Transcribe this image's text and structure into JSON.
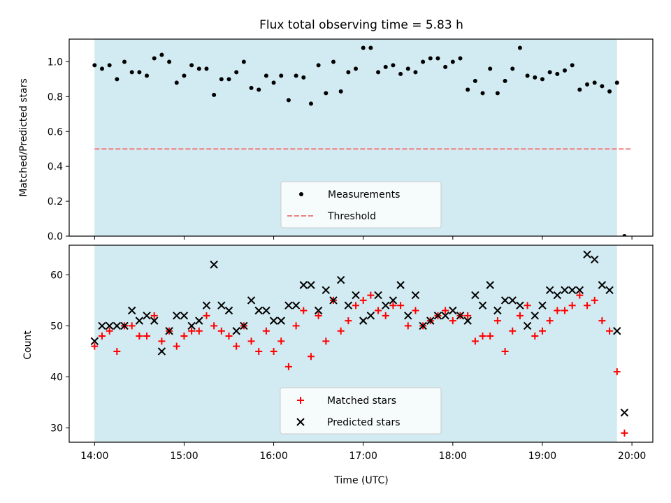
{
  "chart_data": [
    {
      "type": "scatter",
      "title": "Flux total observing time = 5.83 h",
      "xlabel": "",
      "ylabel": "Matched/Predicted stars",
      "xlim": [
        "13:43",
        "20:14"
      ],
      "ylim": [
        0,
        1.13
      ],
      "yticks": [
        "0.0",
        "0.2",
        "0.4",
        "0.6",
        "0.8",
        "1.0"
      ],
      "grid": false,
      "legend_placement": "lower-center",
      "observing_window": [
        "14:00",
        "19:50"
      ],
      "threshold": {
        "name": "Threshold",
        "value": 0.5,
        "from": "14:00",
        "to": "19:59",
        "color": "#f08080",
        "style": "dashed"
      },
      "series": [
        {
          "name": "Measurements",
          "marker": "dot",
          "color": "#000000",
          "x": [
            "14:00",
            "14:05",
            "14:10",
            "14:15",
            "14:20",
            "14:25",
            "14:30",
            "14:35",
            "14:40",
            "14:45",
            "14:50",
            "14:55",
            "15:00",
            "15:05",
            "15:10",
            "15:15",
            "15:20",
            "15:25",
            "15:30",
            "15:35",
            "15:40",
            "15:45",
            "15:50",
            "15:55",
            "16:00",
            "16:05",
            "16:10",
            "16:15",
            "16:20",
            "16:25",
            "16:30",
            "16:35",
            "16:40",
            "16:45",
            "16:50",
            "16:55",
            "17:00",
            "17:05",
            "17:10",
            "17:15",
            "17:20",
            "17:25",
            "17:30",
            "17:35",
            "17:40",
            "17:45",
            "17:50",
            "17:55",
            "18:00",
            "18:05",
            "18:10",
            "18:15",
            "18:20",
            "18:25",
            "18:30",
            "18:35",
            "18:40",
            "18:45",
            "18:50",
            "18:55",
            "19:00",
            "19:05",
            "19:10",
            "19:15",
            "19:20",
            "19:25",
            "19:30",
            "19:35",
            "19:40",
            "19:45",
            "19:50",
            "19:55"
          ],
          "y": [
            0.98,
            0.96,
            0.98,
            0.9,
            1.0,
            0.94,
            0.94,
            0.92,
            1.02,
            1.04,
            1.0,
            0.88,
            0.92,
            0.98,
            0.96,
            0.96,
            0.81,
            0.9,
            0.9,
            0.94,
            1.0,
            0.85,
            0.84,
            0.92,
            0.88,
            0.92,
            0.78,
            0.92,
            0.91,
            0.76,
            0.98,
            0.82,
            1.0,
            0.83,
            0.94,
            0.96,
            1.08,
            1.08,
            0.94,
            0.97,
            0.98,
            0.93,
            0.96,
            0.94,
            1.0,
            1.02,
            1.02,
            0.97,
            1.0,
            1.02,
            0.84,
            0.89,
            0.82,
            0.96,
            0.82,
            0.89,
            0.96,
            1.08,
            0.92,
            0.91,
            0.9,
            0.94,
            0.93,
            0.95,
            0.98,
            0.84,
            0.87,
            0.88,
            0.86,
            0.83,
            0.88,
            0.0
          ]
        }
      ]
    },
    {
      "type": "scatter",
      "title": "",
      "xlabel": "Time (UTC)",
      "ylabel": "Count",
      "xlim": [
        "13:43",
        "20:14"
      ],
      "xticks": [
        "14:00",
        "15:00",
        "16:00",
        "17:00",
        "18:00",
        "19:00",
        "20:00"
      ],
      "ylim": [
        27.2,
        65.8
      ],
      "yticks": [
        "30",
        "40",
        "50",
        "60"
      ],
      "grid": false,
      "legend_placement": "lower-center",
      "observing_window": [
        "14:00",
        "19:50"
      ],
      "series": [
        {
          "name": "Matched stars",
          "marker": "plus",
          "color": "#ff0000",
          "x": [
            "14:00",
            "14:05",
            "14:10",
            "14:15",
            "14:20",
            "14:25",
            "14:30",
            "14:35",
            "14:40",
            "14:45",
            "14:50",
            "14:55",
            "15:00",
            "15:05",
            "15:10",
            "15:15",
            "15:20",
            "15:25",
            "15:30",
            "15:35",
            "15:40",
            "15:45",
            "15:50",
            "15:55",
            "16:00",
            "16:05",
            "16:10",
            "16:15",
            "16:20",
            "16:25",
            "16:30",
            "16:35",
            "16:40",
            "16:45",
            "16:50",
            "16:55",
            "17:00",
            "17:05",
            "17:10",
            "17:15",
            "17:20",
            "17:25",
            "17:30",
            "17:35",
            "17:40",
            "17:45",
            "17:50",
            "17:55",
            "18:00",
            "18:05",
            "18:10",
            "18:15",
            "18:20",
            "18:25",
            "18:30",
            "18:35",
            "18:40",
            "18:45",
            "18:50",
            "18:55",
            "19:00",
            "19:05",
            "19:10",
            "19:15",
            "19:20",
            "19:25",
            "19:30",
            "19:35",
            "19:40",
            "19:45",
            "19:50",
            "19:55"
          ],
          "y": [
            46,
            48,
            49,
            45,
            50,
            50,
            48,
            48,
            52,
            47,
            49,
            46,
            48,
            49,
            49,
            52,
            50,
            49,
            48,
            46,
            50,
            47,
            45,
            49,
            45,
            47,
            42,
            50,
            53,
            44,
            52,
            47,
            55,
            49,
            51,
            54,
            55,
            56,
            53,
            52,
            54,
            54,
            50,
            53,
            50,
            51,
            52,
            53,
            51,
            52,
            52,
            47,
            48,
            48,
            51,
            45,
            49,
            52,
            54,
            48,
            49,
            51,
            53,
            53,
            54,
            56,
            54,
            55,
            51,
            49,
            41,
            29
          ]
        },
        {
          "name": "Predicted stars",
          "marker": "x",
          "color": "#000000",
          "x": [
            "14:00",
            "14:05",
            "14:10",
            "14:15",
            "14:20",
            "14:25",
            "14:30",
            "14:35",
            "14:40",
            "14:45",
            "14:50",
            "14:55",
            "15:00",
            "15:05",
            "15:10",
            "15:15",
            "15:20",
            "15:25",
            "15:30",
            "15:35",
            "15:40",
            "15:45",
            "15:50",
            "15:55",
            "16:00",
            "16:05",
            "16:10",
            "16:15",
            "16:20",
            "16:25",
            "16:30",
            "16:35",
            "16:40",
            "16:45",
            "16:50",
            "16:55",
            "17:00",
            "17:05",
            "17:10",
            "17:15",
            "17:20",
            "17:25",
            "17:30",
            "17:35",
            "17:40",
            "17:45",
            "17:50",
            "17:55",
            "18:00",
            "18:05",
            "18:10",
            "18:15",
            "18:20",
            "18:25",
            "18:30",
            "18:35",
            "18:40",
            "18:45",
            "18:50",
            "18:55",
            "19:00",
            "19:05",
            "19:10",
            "19:15",
            "19:20",
            "19:25",
            "19:30",
            "19:35",
            "19:40",
            "19:45",
            "19:50",
            "19:55"
          ],
          "y": [
            47,
            50,
            50,
            50,
            50,
            53,
            51,
            52,
            51,
            45,
            49,
            52,
            52,
            50,
            51,
            54,
            62,
            54,
            53,
            49,
            50,
            55,
            53,
            53,
            51,
            51,
            54,
            54,
            58,
            58,
            53,
            57,
            55,
            59,
            54,
            56,
            51,
            52,
            56,
            54,
            55,
            58,
            52,
            56,
            50,
            51,
            52,
            52,
            53,
            52,
            51,
            56,
            54,
            58,
            53,
            55,
            55,
            54,
            50,
            52,
            54,
            57,
            56,
            57,
            57,
            57,
            64,
            63,
            58,
            57,
            49,
            33
          ]
        }
      ]
    }
  ]
}
